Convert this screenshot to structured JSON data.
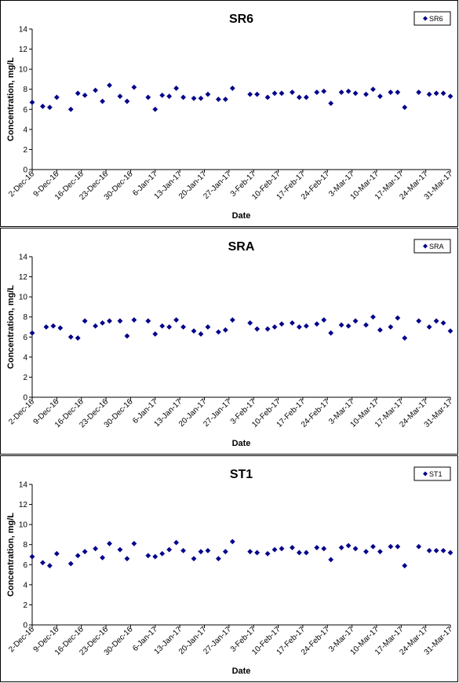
{
  "chart_data": [
    {
      "type": "scatter",
      "title": "SR6",
      "xlabel": "Date",
      "ylabel": "Concentration, mg/L",
      "ylim": [
        0,
        14
      ],
      "yticks": [
        0,
        2,
        4,
        6,
        8,
        10,
        12,
        14
      ],
      "xlim": [
        "2016-12-02",
        "2017-03-31"
      ],
      "xticks": [
        "2-Dec-16",
        "9-Dec-16",
        "16-Dec-16",
        "23-Dec-16",
        "30-Dec-16",
        "6-Jan-17",
        "13-Jan-17",
        "20-Jan-17",
        "27-Jan-17",
        "3-Feb-17",
        "10-Feb-17",
        "17-Feb-17",
        "24-Feb-17",
        "3-Mar-17",
        "10-Mar-17",
        "17-Mar-17",
        "24-Mar-17",
        "31-Mar-17"
      ],
      "grid": false,
      "legend": "top-right",
      "marker_color": "#00008B",
      "series": [
        {
          "name": "SR6",
          "x": [
            "2016-12-02",
            "2016-12-05",
            "2016-12-07",
            "2016-12-09",
            "2016-12-13",
            "2016-12-15",
            "2016-12-17",
            "2016-12-20",
            "2016-12-22",
            "2016-12-24",
            "2016-12-27",
            "2016-12-29",
            "2016-12-31",
            "2017-01-04",
            "2017-01-06",
            "2017-01-08",
            "2017-01-10",
            "2017-01-12",
            "2017-01-14",
            "2017-01-17",
            "2017-01-19",
            "2017-01-21",
            "2017-01-24",
            "2017-01-26",
            "2017-01-28",
            "2017-02-02",
            "2017-02-04",
            "2017-02-07",
            "2017-02-09",
            "2017-02-11",
            "2017-02-14",
            "2017-02-16",
            "2017-02-18",
            "2017-02-21",
            "2017-02-23",
            "2017-02-25",
            "2017-02-28",
            "2017-03-02",
            "2017-03-04",
            "2017-03-07",
            "2017-03-09",
            "2017-03-11",
            "2017-03-14",
            "2017-03-16",
            "2017-03-18",
            "2017-03-22",
            "2017-03-25",
            "2017-03-27",
            "2017-03-29",
            "2017-03-31"
          ],
          "y": [
            6.7,
            6.3,
            6.2,
            7.2,
            6.0,
            7.6,
            7.4,
            7.9,
            6.8,
            8.4,
            7.3,
            6.8,
            8.2,
            7.2,
            6.0,
            7.4,
            7.3,
            8.1,
            7.2,
            7.1,
            7.1,
            7.5,
            7.0,
            7.0,
            8.1,
            7.5,
            7.5,
            7.2,
            7.6,
            7.6,
            7.7,
            7.2,
            7.2,
            7.7,
            7.8,
            6.6,
            7.7,
            7.8,
            7.6,
            7.5,
            8.0,
            7.3,
            7.7,
            7.7,
            6.2,
            7.7,
            7.5,
            7.6,
            7.6,
            7.3
          ]
        }
      ]
    },
    {
      "type": "scatter",
      "title": "SRA",
      "xlabel": "Date",
      "ylabel": "Concentration, mg/L",
      "ylim": [
        0,
        14
      ],
      "yticks": [
        0,
        2,
        4,
        6,
        8,
        10,
        12,
        14
      ],
      "xlim": [
        "2016-12-02",
        "2017-03-31"
      ],
      "xticks": [
        "2-Dec-16",
        "9-Dec-16",
        "16-Dec-16",
        "23-Dec-16",
        "30-Dec-16",
        "6-Jan-17",
        "13-Jan-17",
        "20-Jan-17",
        "27-Jan-17",
        "3-Feb-17",
        "10-Feb-17",
        "17-Feb-17",
        "24-Feb-17",
        "3-Mar-17",
        "10-Mar-17",
        "17-Mar-17",
        "24-Mar-17",
        "31-Mar-17"
      ],
      "grid": false,
      "legend": "top-right",
      "marker_color": "#00008B",
      "series": [
        {
          "name": "SRA",
          "x": [
            "2016-12-02",
            "2016-12-06",
            "2016-12-08",
            "2016-12-10",
            "2016-12-13",
            "2016-12-15",
            "2016-12-17",
            "2016-12-20",
            "2016-12-22",
            "2016-12-24",
            "2016-12-27",
            "2016-12-29",
            "2016-12-31",
            "2017-01-04",
            "2017-01-06",
            "2017-01-08",
            "2017-01-10",
            "2017-01-12",
            "2017-01-14",
            "2017-01-17",
            "2017-01-19",
            "2017-01-21",
            "2017-01-24",
            "2017-01-26",
            "2017-01-28",
            "2017-02-02",
            "2017-02-04",
            "2017-02-07",
            "2017-02-09",
            "2017-02-11",
            "2017-02-14",
            "2017-02-16",
            "2017-02-18",
            "2017-02-21",
            "2017-02-23",
            "2017-02-25",
            "2017-02-28",
            "2017-03-02",
            "2017-03-04",
            "2017-03-07",
            "2017-03-09",
            "2017-03-11",
            "2017-03-14",
            "2017-03-16",
            "2017-03-18",
            "2017-03-22",
            "2017-03-25",
            "2017-03-27",
            "2017-03-29",
            "2017-03-31"
          ],
          "y": [
            6.4,
            7.0,
            7.1,
            6.9,
            6.0,
            5.9,
            7.6,
            7.1,
            7.4,
            7.6,
            7.6,
            6.1,
            7.7,
            7.6,
            6.3,
            7.1,
            7.0,
            7.7,
            7.0,
            6.6,
            6.3,
            7.0,
            6.5,
            6.7,
            7.7,
            7.4,
            6.8,
            6.8,
            7.0,
            7.3,
            7.4,
            7.0,
            7.1,
            7.3,
            7.7,
            6.4,
            7.2,
            7.1,
            7.6,
            7.2,
            8.0,
            6.7,
            7.0,
            7.9,
            5.9,
            7.6,
            7.0,
            7.6,
            7.4,
            6.6
          ]
        }
      ]
    },
    {
      "type": "scatter",
      "title": "ST1",
      "xlabel": "Date",
      "ylabel": "Concentration, mg/L",
      "ylim": [
        0,
        14
      ],
      "yticks": [
        0,
        2,
        4,
        6,
        8,
        10,
        12,
        14
      ],
      "xlim": [
        "2016-12-02",
        "2017-03-31"
      ],
      "xticks": [
        "2-Dec-16",
        "9-Dec-16",
        "16-Dec-16",
        "23-Dec-16",
        "30-Dec-16",
        "6-Jan-17",
        "13-Jan-17",
        "20-Jan-17",
        "27-Jan-17",
        "3-Feb-17",
        "10-Feb-17",
        "17-Feb-17",
        "24-Feb-17",
        "3-Mar-17",
        "10-Mar-17",
        "17-Mar-17",
        "24-Mar-17",
        "31-Mar-17"
      ],
      "grid": false,
      "legend": "top-right",
      "marker_color": "#00008B",
      "series": [
        {
          "name": "ST1",
          "x": [
            "2016-12-02",
            "2016-12-05",
            "2016-12-07",
            "2016-12-09",
            "2016-12-13",
            "2016-12-15",
            "2016-12-17",
            "2016-12-20",
            "2016-12-22",
            "2016-12-24",
            "2016-12-27",
            "2016-12-29",
            "2016-12-31",
            "2017-01-04",
            "2017-01-06",
            "2017-01-08",
            "2017-01-10",
            "2017-01-12",
            "2017-01-14",
            "2017-01-17",
            "2017-01-19",
            "2017-01-21",
            "2017-01-24",
            "2017-01-26",
            "2017-01-28",
            "2017-02-02",
            "2017-02-04",
            "2017-02-07",
            "2017-02-09",
            "2017-02-11",
            "2017-02-14",
            "2017-02-16",
            "2017-02-18",
            "2017-02-21",
            "2017-02-23",
            "2017-02-25",
            "2017-02-28",
            "2017-03-02",
            "2017-03-04",
            "2017-03-07",
            "2017-03-09",
            "2017-03-11",
            "2017-03-14",
            "2017-03-16",
            "2017-03-18",
            "2017-03-22",
            "2017-03-25",
            "2017-03-27",
            "2017-03-29",
            "2017-03-31"
          ],
          "y": [
            6.8,
            6.2,
            5.9,
            7.1,
            6.1,
            6.9,
            7.3,
            7.6,
            6.7,
            8.1,
            7.5,
            6.6,
            8.1,
            6.9,
            6.8,
            7.1,
            7.5,
            8.2,
            7.4,
            6.6,
            7.3,
            7.4,
            6.6,
            7.3,
            8.3,
            7.3,
            7.2,
            7.1,
            7.5,
            7.6,
            7.7,
            7.2,
            7.2,
            7.7,
            7.6,
            6.5,
            7.7,
            7.9,
            7.6,
            7.3,
            7.8,
            7.3,
            7.8,
            7.8,
            5.9,
            7.8,
            7.4,
            7.4,
            7.4,
            7.2
          ]
        }
      ]
    }
  ]
}
